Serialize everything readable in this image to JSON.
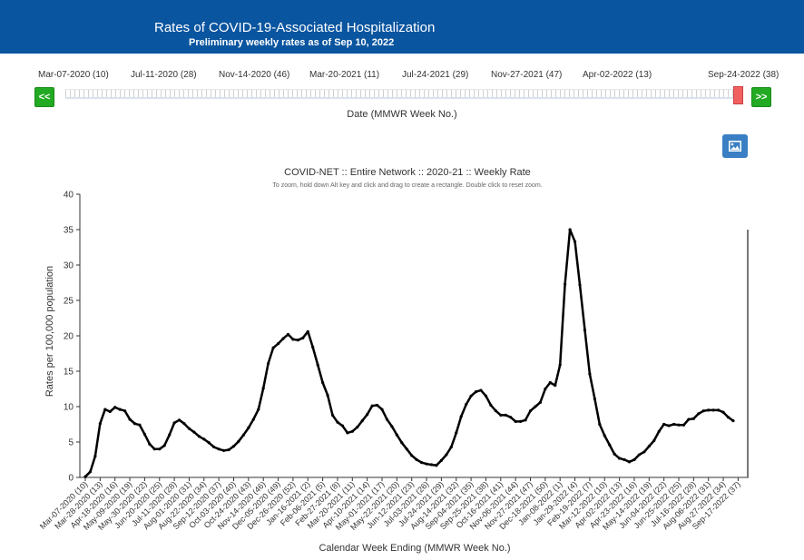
{
  "header": {
    "title": "Rates of COVID-19-Associated Hospitalization",
    "subtitle": "Preliminary weekly rates as of Sep 10, 2022"
  },
  "slider": {
    "date_ticks": [
      "Mar-07-2020 (10)",
      "Jul-11-2020 (28)",
      "Nov-14-2020 (46)",
      "Mar-20-2021 (11)",
      "Jul-24-2021 (29)",
      "Nov-27-2021 (47)",
      "Apr-02-2022 (13)",
      "Sep-24-2022 (38)"
    ],
    "prev_label": "<<",
    "next_label": ">>",
    "axis_label": "Date (MMWR Week No.)",
    "handle_color": "#f06060"
  },
  "toolbar": {
    "image_icon": "image-icon"
  },
  "colors": {
    "banner": "#0a55a0",
    "line": "#000000",
    "nav_button": "#22aa22",
    "image_button": "#3a7fc4"
  },
  "chart_data": {
    "type": "line",
    "title": "COVID-NET :: Entire Network :: 2020-21 :: Weekly Rate",
    "subtitle": "To zoom, hold down Alt key and click and drag to create a rectangle. Double click to reset zoom.",
    "xlabel": "Calendar Week Ending (MMWR Week No.)",
    "ylabel": "Rates per 100,000 population",
    "ylim": [
      0,
      40
    ],
    "yticks": [
      0,
      5,
      10,
      15,
      20,
      25,
      30,
      35,
      40
    ],
    "grid": false,
    "legend": "none",
    "x_tick_labels": [
      "Mar-07-2020 (10)",
      "Mar-28-2020 (13)",
      "Apr-18-2020 (16)",
      "May-09-2020 (19)",
      "May-30-2020 (22)",
      "Jun-20-2020 (25)",
      "Jul-11-2020 (28)",
      "Aug-01-2020 (31)",
      "Aug-22-2020 (34)",
      "Sep-12-2020 (37)",
      "Oct-03-2020 (40)",
      "Oct-24-2020 (43)",
      "Nov-14-2020 (46)",
      "Dec-05-2020 (49)",
      "Dec-26-2020 (52)",
      "Jan-16-2021 (2)",
      "Feb-06-2021 (5)",
      "Feb-27-2021 (8)",
      "Mar-20-2021 (11)",
      "Apr-10-2021 (14)",
      "May-01-2021 (17)",
      "May-22-2021 (20)",
      "Jun-12-2021 (23)",
      "Jul-03-2021 (26)",
      "Jul-24-2021 (29)",
      "Aug-14-2021 (32)",
      "Sep-04-2021 (35)",
      "Sep-25-2021 (38)",
      "Oct-16-2021 (41)",
      "Nov-06-2021 (44)",
      "Nov-27-2021 (47)",
      "Dec-18-2021 (50)",
      "Jan-08-2022 (1)",
      "Jan-29-2022 (4)",
      "Feb-19-2022 (7)",
      "Mar-12-2022 (10)",
      "Apr-02-2022 (13)",
      "Apr-23-2022 (16)",
      "May-14-2022 (19)",
      "Jun-04-2022 (22)",
      "Jun-25-2022 (25)",
      "Jul-16-2022 (28)",
      "Aug-06-2022 (31)",
      "Aug-27-2022 (34)",
      "Sep-17-2022 (37)"
    ],
    "series": [
      {
        "values": [
          0.1,
          0.8,
          3.0,
          7.6,
          9.6,
          9.3,
          9.9,
          9.6,
          9.4,
          8.2,
          7.6,
          7.4,
          6.1,
          4.7,
          4.0,
          4.0,
          4.5,
          6.0,
          7.7,
          8.1,
          7.6,
          6.9,
          6.4,
          5.8,
          5.4,
          4.9,
          4.3,
          4.0,
          3.8,
          3.9,
          4.4,
          5.1,
          6.0,
          7.0,
          8.2,
          9.6,
          12.6,
          16.1,
          18.3,
          18.9,
          19.6,
          20.2,
          19.5,
          19.4,
          19.7,
          20.6,
          18.4,
          15.9,
          13.4,
          11.6,
          8.8,
          7.8,
          7.3,
          6.3,
          6.5,
          7.1,
          8.0,
          8.9,
          10.1,
          10.2,
          9.6,
          8.2,
          7.2,
          6.0,
          4.9,
          4.0,
          3.1,
          2.5,
          2.1,
          1.9,
          1.8,
          1.7,
          2.4,
          3.2,
          4.3,
          6.3,
          8.6,
          10.3,
          11.5,
          12.1,
          12.3,
          11.5,
          10.2,
          9.4,
          8.8,
          8.8,
          8.5,
          7.9,
          7.9,
          8.1,
          9.4,
          10.0,
          10.6,
          12.5,
          13.4,
          13.0,
          15.9,
          27.3,
          35.0,
          33.3,
          27.2,
          20.8,
          14.6,
          11.1,
          7.5,
          5.9,
          4.6,
          3.3,
          2.7,
          2.5,
          2.2,
          2.5,
          3.2,
          3.6,
          4.4,
          5.2,
          6.5,
          7.5,
          7.3,
          7.5,
          7.4,
          7.4,
          8.2,
          8.3,
          9.0,
          9.4,
          9.5,
          9.5,
          9.5,
          9.2,
          8.5,
          8.0
        ]
      }
    ]
  }
}
